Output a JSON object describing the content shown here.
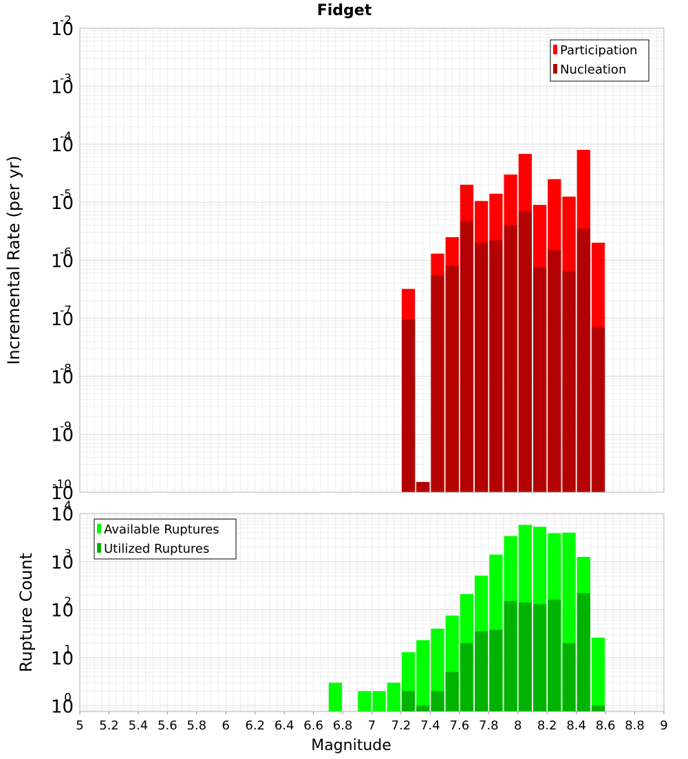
{
  "chart_data": [
    {
      "type": "bar",
      "title": "Fidget",
      "ylabel": "Incremental Rate (per yr)",
      "xlabel": "",
      "yscale": "log",
      "ylim": [
        1e-10,
        0.01
      ],
      "xlim": [
        5,
        9
      ],
      "bar_width": 0.1,
      "grid": true,
      "legend_position": "top-right",
      "y_tick_exponents": [
        "-2",
        "-3",
        "-4",
        "-5",
        "-6",
        "-7",
        "-8",
        "-9",
        "-10"
      ],
      "y_tick_base": "10",
      "x": [
        7.25,
        7.35,
        7.45,
        7.55,
        7.65,
        7.75,
        7.85,
        7.95,
        8.05,
        8.15,
        8.25,
        8.35,
        8.45,
        8.55
      ],
      "series": [
        {
          "name": "Participation",
          "color": "#ff0000",
          "values": [
            3.2e-07,
            1.5e-10,
            1.3e-06,
            2.5e-06,
            2e-05,
            1.05e-05,
            1.4e-05,
            3e-05,
            6.8e-05,
            9e-06,
            2.5e-05,
            1.25e-05,
            8e-05,
            2e-06
          ]
        },
        {
          "name": "Nucleation",
          "color": "#b30000",
          "values": [
            9.5e-08,
            1.5e-10,
            5.5e-07,
            8e-07,
            4.7e-06,
            2e-06,
            2.2e-06,
            4e-06,
            7e-06,
            7.5e-07,
            1.5e-06,
            6.5e-07,
            3.5e-06,
            7e-08
          ]
        }
      ]
    },
    {
      "type": "bar",
      "title": "",
      "ylabel": "Rupture Count",
      "xlabel": "Magnitude",
      "yscale": "log",
      "ylim": [
        0.75,
        10000
      ],
      "xlim": [
        5,
        9
      ],
      "bar_width": 0.1,
      "grid": true,
      "legend_position": "top-left",
      "y_tick_exponents": [
        "4",
        "3",
        "2",
        "1",
        "0"
      ],
      "y_tick_base": "10",
      "x_ticks": [
        "5",
        "5.2",
        "5.4",
        "5.6",
        "5.8",
        "6",
        "6.2",
        "6.4",
        "6.6",
        "6.8",
        "7",
        "7.2",
        "7.4",
        "7.6",
        "7.8",
        "8",
        "8.2",
        "8.4",
        "8.6",
        "8.8",
        "9"
      ],
      "x": [
        6.75,
        6.95,
        7.05,
        7.15,
        7.25,
        7.35,
        7.45,
        7.55,
        7.65,
        7.75,
        7.85,
        7.95,
        8.05,
        8.15,
        8.25,
        8.35,
        8.45,
        8.55
      ],
      "series": [
        {
          "name": "Available Ruptures",
          "color": "#00ff00",
          "values": [
            3,
            2,
            2,
            3,
            13,
            23,
            40,
            75,
            210,
            510,
            1400,
            3400,
            5800,
            5300,
            3900,
            4000,
            1250,
            26
          ]
        },
        {
          "name": "Utilized Ruptures",
          "color": "#00b300",
          "values": [
            null,
            null,
            null,
            null,
            2,
            1,
            2,
            5,
            20,
            35,
            38,
            150,
            140,
            130,
            160,
            20,
            220,
            1
          ]
        }
      ]
    }
  ]
}
